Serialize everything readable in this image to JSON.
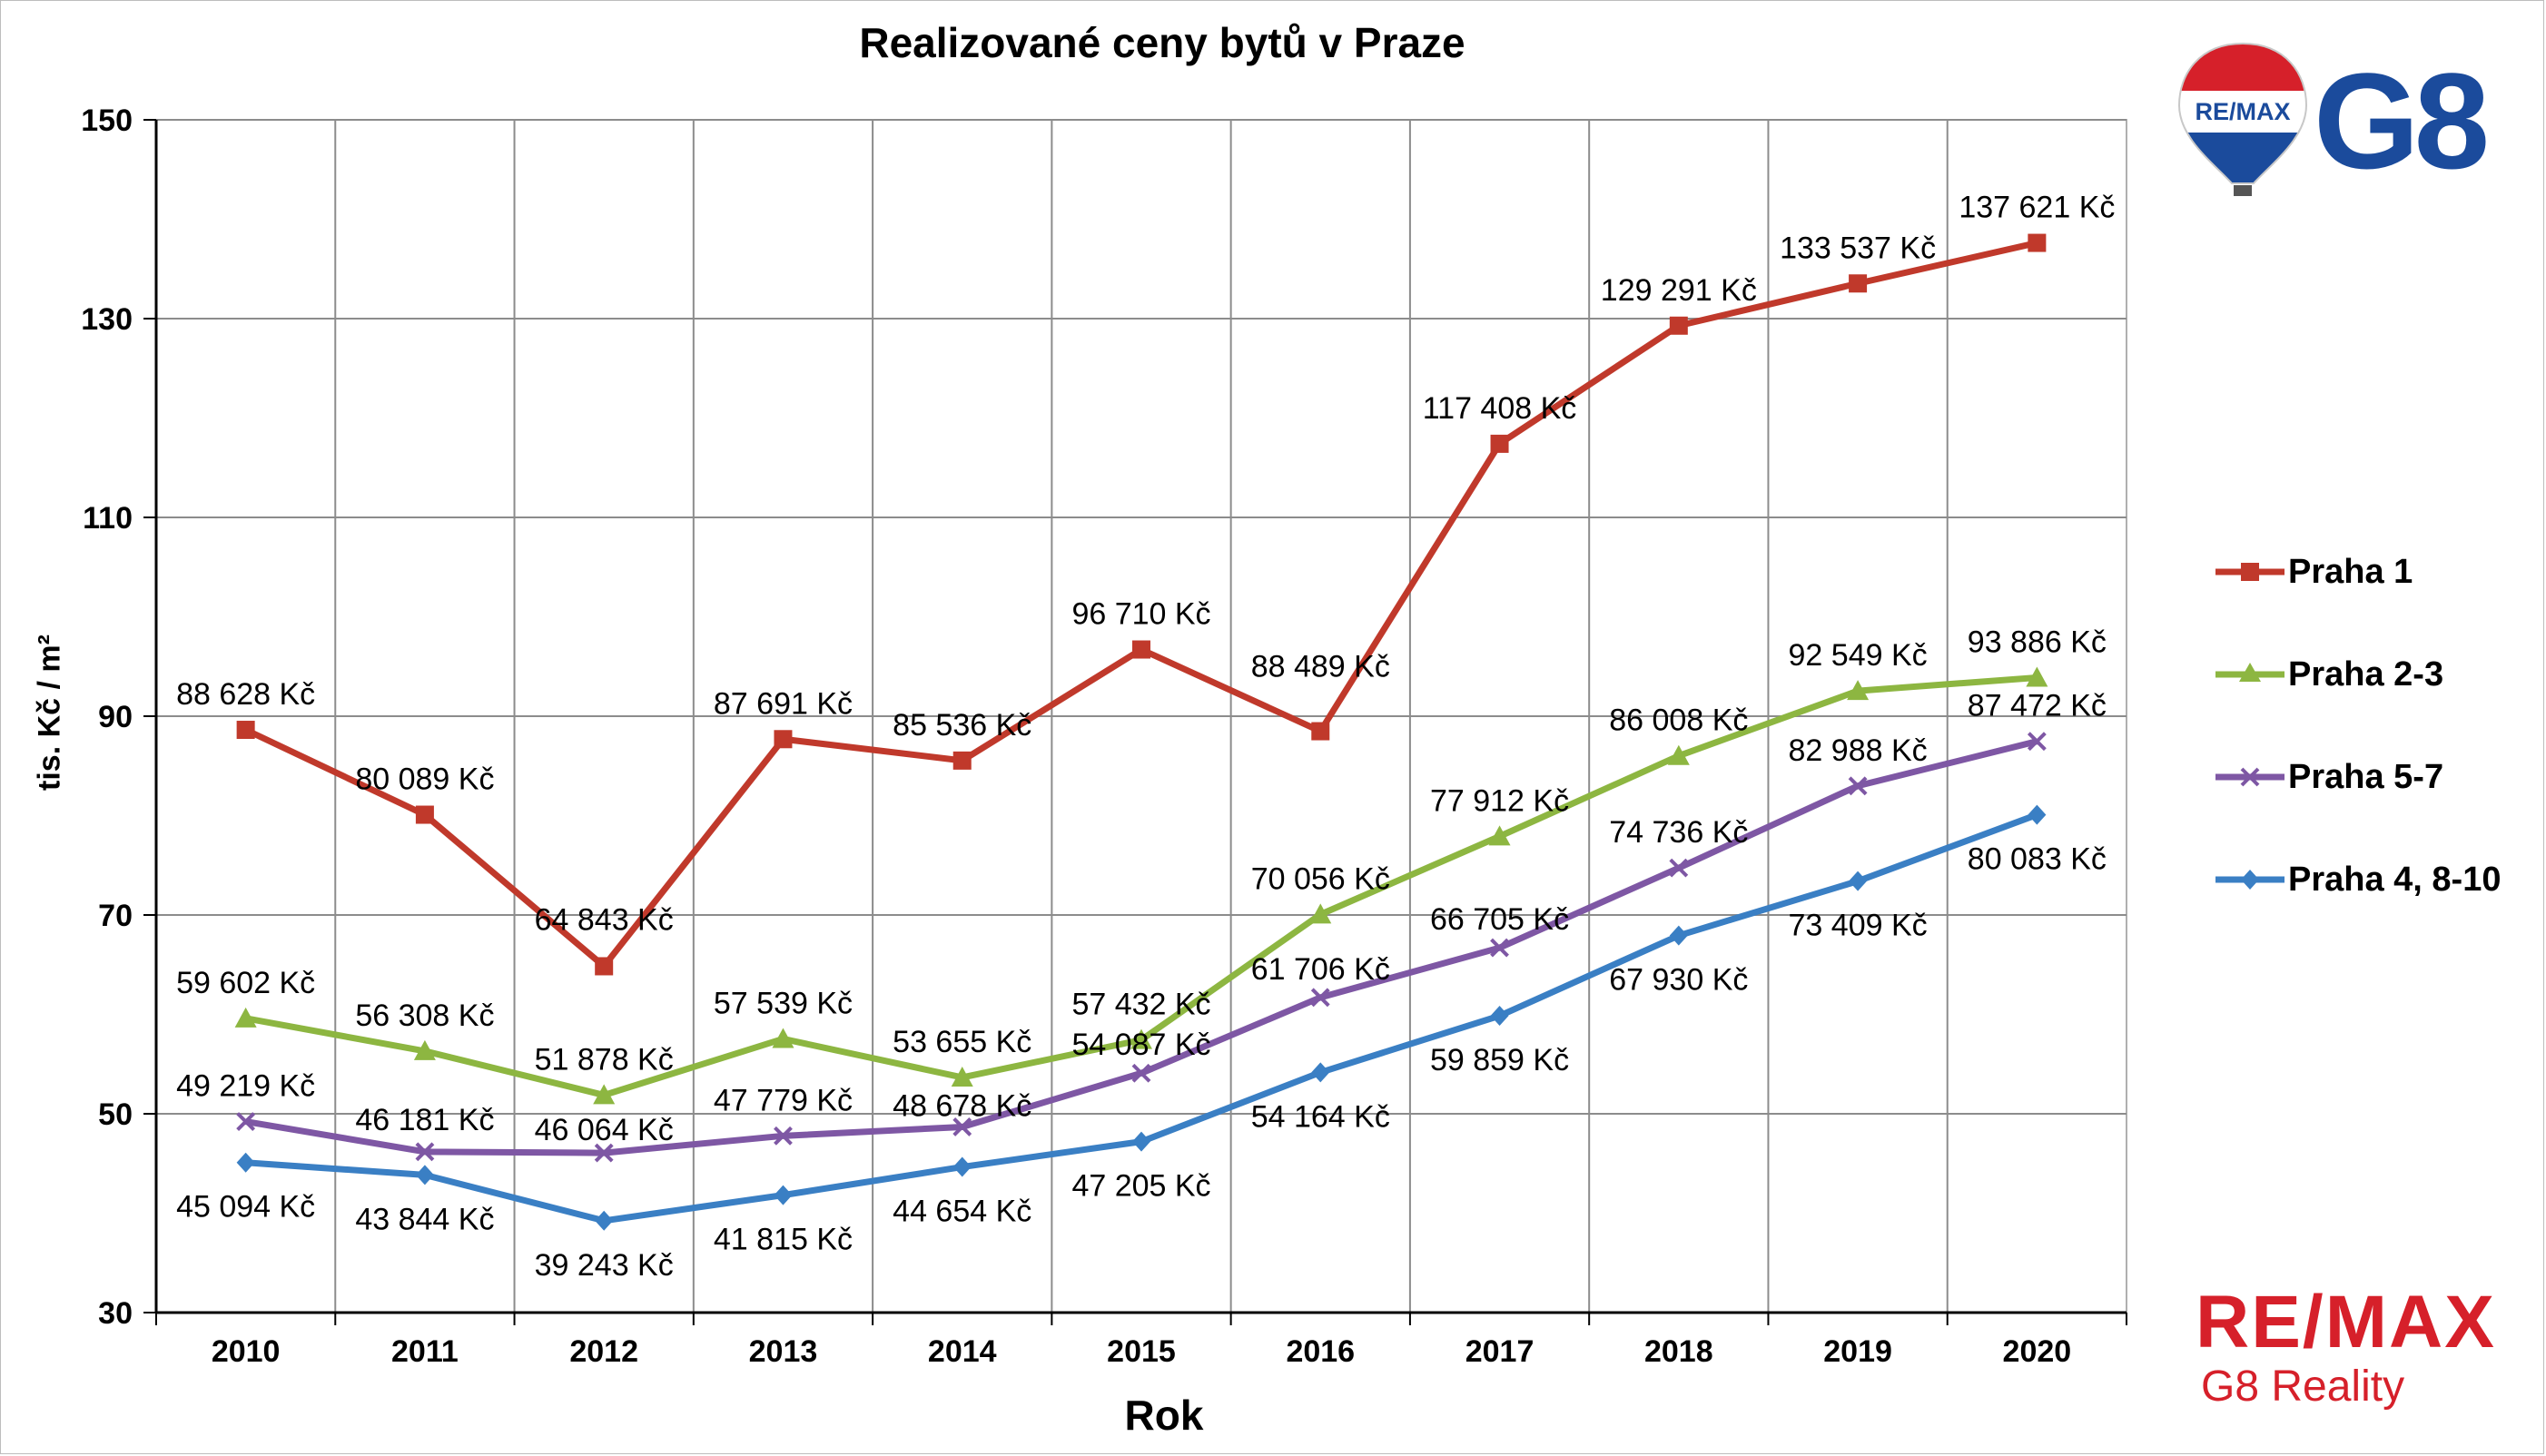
{
  "chart_data": {
    "type": "line",
    "title": "Realizované ceny bytů v Praze",
    "xlabel": "Rok",
    "ylabel": "tis. Kč / m²",
    "ylim": [
      30,
      150
    ],
    "yticks": [
      30,
      50,
      70,
      90,
      110,
      130,
      150
    ],
    "categories": [
      "2010",
      "2011",
      "2012",
      "2013",
      "2014",
      "2015",
      "2016",
      "2017",
      "2018",
      "2019",
      "2020"
    ],
    "grid": true,
    "legend_position": "right",
    "series": [
      {
        "name": "Praha 1",
        "color": "#c0392b",
        "marker": "square",
        "values": [
          88.628,
          80.089,
          64.843,
          87.691,
          85.536,
          96.71,
          88.489,
          117.408,
          129.291,
          133.537,
          137.621
        ],
        "labels": [
          "88 628 Kč",
          "80 089 Kč",
          "64 843 Kč",
          "87 691 Kč",
          "85 536 Kč",
          "96 710 Kč",
          "88 489 Kč",
          "117 408 Kč",
          "129 291 Kč",
          "133 537 Kč",
          "137 621 Kč"
        ]
      },
      {
        "name": "Praha 2-3",
        "color": "#8db641",
        "marker": "triangle",
        "values": [
          59.602,
          56.308,
          51.878,
          57.539,
          53.655,
          57.432,
          70.056,
          77.912,
          86.008,
          92.549,
          93.886
        ],
        "labels": [
          "59 602 Kč",
          "56 308 Kč",
          "51 878 Kč",
          "57 539 Kč",
          "53 655 Kč",
          "57 432 Kč",
          "70 056 Kč",
          "77 912 Kč",
          "86 008 Kč",
          "92 549 Kč",
          "93 886 Kč"
        ]
      },
      {
        "name": "Praha 5-7",
        "color": "#7e57a4",
        "marker": "x",
        "values": [
          49.219,
          46.181,
          46.064,
          47.779,
          48.678,
          54.087,
          61.706,
          66.705,
          74.736,
          82.988,
          87.472
        ],
        "labels": [
          "49 219 Kč",
          "46 181 Kč",
          "46 064 Kč",
          "47 779 Kč",
          "48 678 Kč",
          "54 087 Kč",
          "61 706 Kč",
          "66 705 Kč",
          "74 736 Kč",
          "82 988 Kč",
          "87 472 Kč"
        ]
      },
      {
        "name": "Praha 4, 8-10",
        "color": "#3a7fc4",
        "marker": "diamond",
        "values": [
          45.094,
          43.844,
          39.243,
          41.815,
          44.654,
          47.205,
          54.164,
          59.859,
          67.93,
          73.409,
          80.083
        ],
        "labels": [
          "45 094 Kč",
          "43 844 Kč",
          "39 243 Kč",
          "41 815 Kč",
          "44 654 Kč",
          "47 205 Kč",
          "54 164 Kč",
          "59 859 Kč",
          "67 930 Kč",
          "73 409 Kč",
          "80 083 Kč"
        ]
      }
    ]
  },
  "logos": {
    "balloon_text": "RE/MAX",
    "top_mark": "G8",
    "bottom_brand": "RE/MAX",
    "bottom_sub": "G8 Reality"
  }
}
